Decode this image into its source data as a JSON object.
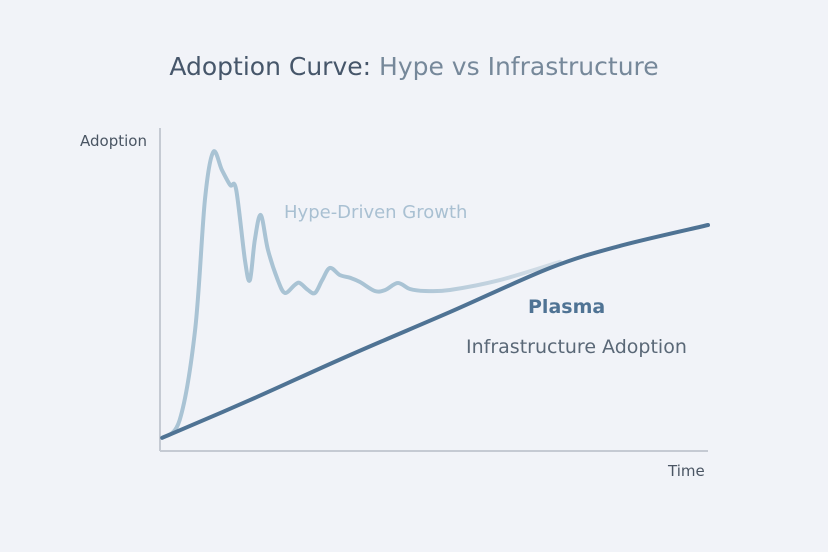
{
  "chart_data": {
    "type": "line",
    "title_main": "Adoption Curve:",
    "title_sub": "Hype vs Infrastructure",
    "xlabel": "Time",
    "ylabel": "Adoption",
    "xlim": [
      0,
      100
    ],
    "ylim": [
      0,
      100
    ],
    "grid": false,
    "colors": {
      "hype": "#a9c3d4",
      "plasma": "#4f7394",
      "axis": "#c5cad3"
    },
    "series": [
      {
        "name": "Hype-Driven Growth",
        "x": [
          0.4,
          3.6,
          6.4,
          8.2,
          9.7,
          11.3,
          12.8,
          13.9,
          15.5,
          16.4,
          17.3,
          18.4,
          19.7,
          21.5,
          22.8,
          24.6,
          25.5,
          27.0,
          28.3,
          29.6,
          31.0,
          32.8,
          34.7,
          36.5,
          39.2,
          41.1,
          43.4,
          45.6,
          48.4,
          52.9,
          62.0,
          73.0
        ],
        "y": [
          3.8,
          9.4,
          37.5,
          78.1,
          93.1,
          87.5,
          82.8,
          81.3,
          59.4,
          53.1,
          65.6,
          73.4,
          62.5,
          53.1,
          49.1,
          51.6,
          52.2,
          50.0,
          49.1,
          53.1,
          56.9,
          54.7,
          53.8,
          52.5,
          49.7,
          50.0,
          52.2,
          50.3,
          49.7,
          50.0,
          53.1,
          58.8
        ]
      },
      {
        "name": "Plasma",
        "subtitle": "Infrastructure Adoption",
        "x": [
          0.4,
          16.4,
          34.7,
          52.9,
          71.2,
          84.0,
          100
        ],
        "y": [
          3.8,
          15.6,
          29.7,
          43.1,
          56.9,
          63.8,
          70.3
        ]
      }
    ]
  }
}
